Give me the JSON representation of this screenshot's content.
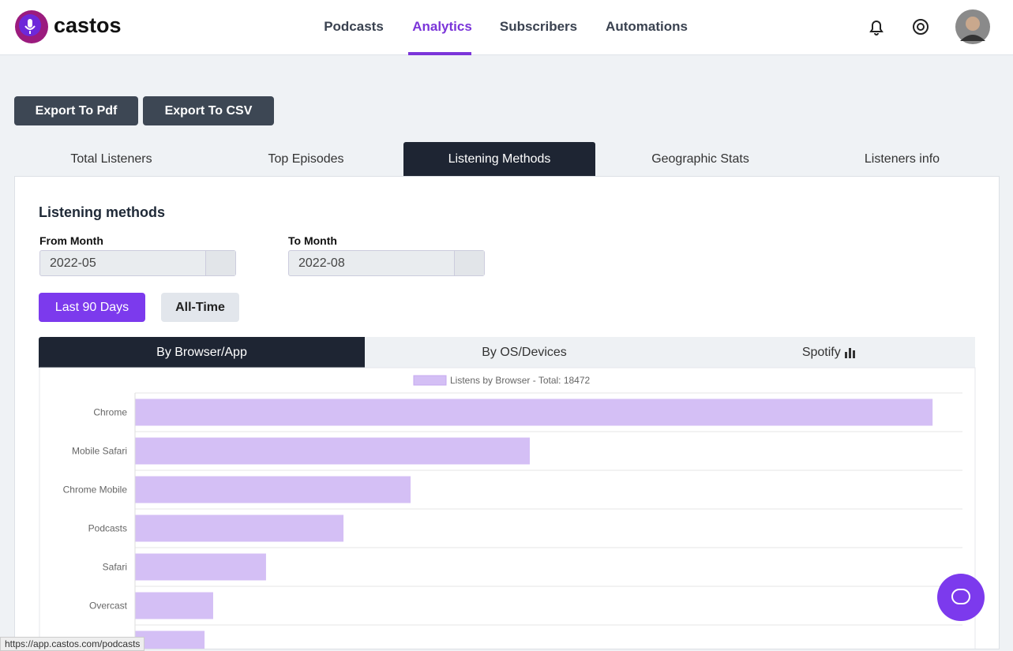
{
  "header": {
    "logo": "castos",
    "nav": [
      "Podcasts",
      "Analytics",
      "Subscribers",
      "Automations"
    ]
  },
  "toolbar": {
    "buttons": [
      "Export To Pdf",
      "Export To CSV"
    ]
  },
  "tabs": [
    "Total Listeners",
    "Top Episodes",
    "Listening Methods",
    "Geographic Stats",
    "Listeners info"
  ],
  "panel": {
    "title": "Listening methods",
    "from_label": "From Month",
    "from_value": "2022-05",
    "to_label": "To Month",
    "to_value": "2022-08",
    "ranges": [
      "Last 90 Days",
      "All-Time"
    ],
    "subtabs": [
      "By Browser/App",
      "By OS/Devices",
      "Spotify"
    ]
  },
  "status_url": "https://app.castos.com/podcasts",
  "chart_data": {
    "type": "hbar",
    "categories": [
      "Chrome",
      "Mobile Safari",
      "Chrome Mobile",
      "Podcasts",
      "Safari",
      "Overcast",
      null
    ],
    "series": [
      {
        "name": "Listens by Browser - Total: 18472",
        "color": "#d4bff5",
        "values": [
          6940,
          3435,
          2398,
          1814,
          1140,
          680,
          605
        ]
      }
    ],
    "xlim": [
      0,
      7200
    ],
    "legend": "top",
    "grid": true
  }
}
